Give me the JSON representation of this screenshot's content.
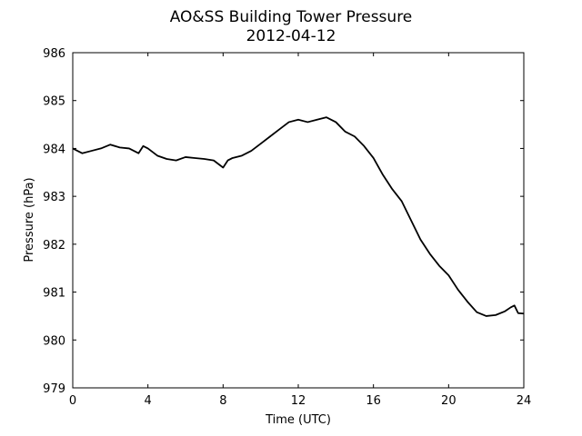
{
  "chart_data": {
    "type": "line",
    "title": "AO&SS Building Tower Pressure",
    "subtitle": "2012-04-12",
    "xlabel": "Time (UTC)",
    "ylabel": "Pressure (hPa)",
    "xlim": [
      0,
      24
    ],
    "ylim": [
      979,
      986
    ],
    "x_ticks": [
      0,
      4,
      8,
      12,
      16,
      20,
      24
    ],
    "y_ticks": [
      979,
      980,
      981,
      982,
      983,
      984,
      985,
      986
    ],
    "grid": false,
    "line_color": "#000000",
    "series": [
      {
        "x": [
          0,
          0.5,
          1,
          1.5,
          2,
          2.5,
          3,
          3.5,
          3.75,
          4,
          4.5,
          5,
          5.5,
          6,
          6.5,
          7,
          7.5,
          8,
          8.25,
          8.5,
          9,
          9.5,
          10,
          10.5,
          11,
          11.5,
          12,
          12.5,
          13,
          13.5,
          14,
          14.5,
          15,
          15.5,
          16,
          16.5,
          17,
          17.5,
          18,
          18.5,
          19,
          19.5,
          20,
          20.5,
          21,
          21.5,
          22,
          22.5,
          23,
          23.3,
          23.5,
          23.7,
          24
        ],
        "y": [
          984.0,
          983.9,
          983.95,
          984.0,
          984.08,
          984.02,
          984.0,
          983.9,
          984.05,
          984.0,
          983.85,
          983.78,
          983.75,
          983.82,
          983.8,
          983.78,
          983.75,
          983.6,
          983.75,
          983.8,
          983.85,
          983.95,
          984.1,
          984.25,
          984.4,
          984.55,
          984.6,
          984.55,
          984.6,
          984.65,
          984.55,
          984.35,
          984.25,
          984.05,
          983.8,
          983.45,
          983.15,
          982.9,
          982.5,
          982.1,
          981.8,
          981.55,
          981.35,
          981.05,
          980.8,
          980.58,
          980.5,
          980.52,
          980.6,
          980.68,
          980.72,
          980.56,
          980.55
        ]
      }
    ]
  }
}
